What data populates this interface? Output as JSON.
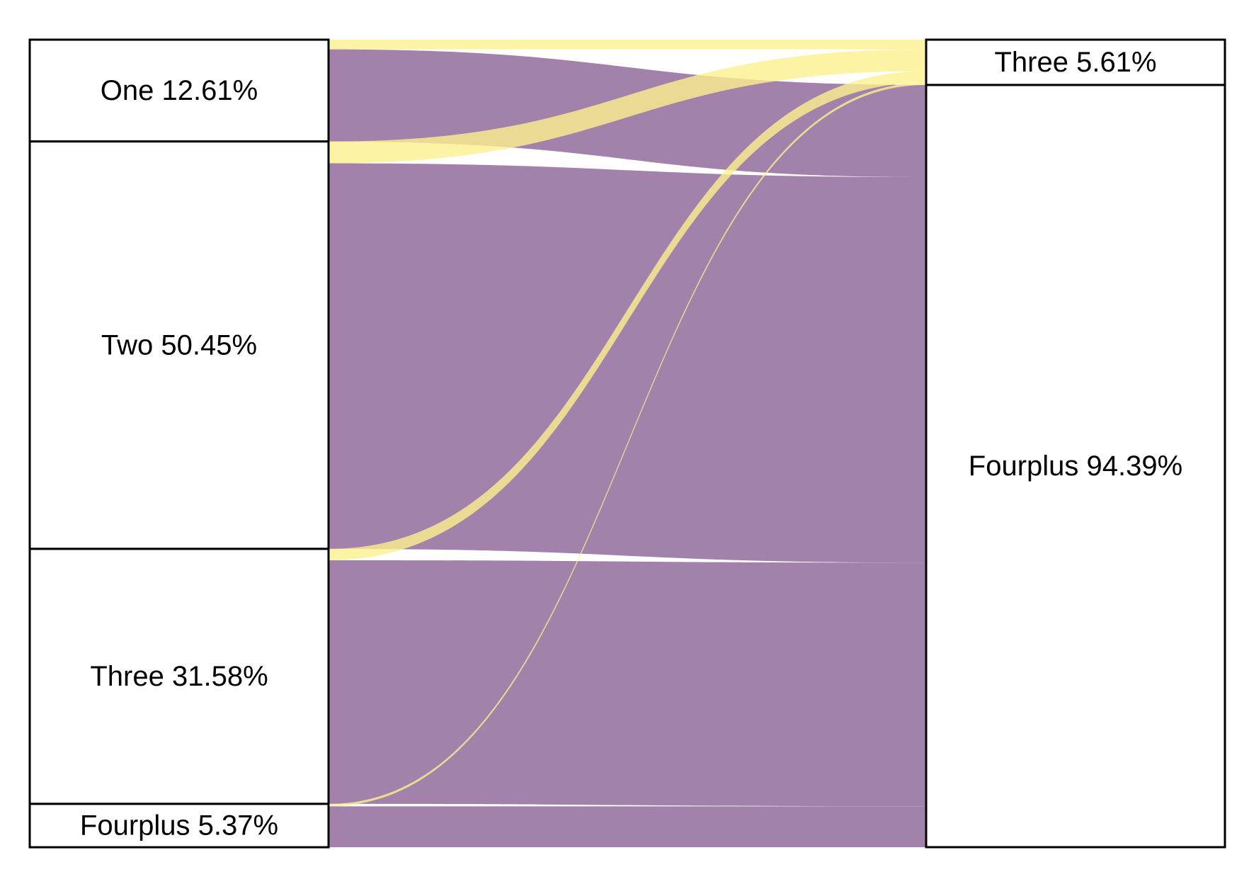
{
  "chart_data": {
    "type": "sankey",
    "colors": {
      "Fourplus": "#a281aa",
      "Three": "#fcf08f",
      "overlap": "#cfb466"
    },
    "left_axis": [
      {
        "name": "One",
        "percent": 12.61,
        "label": "One 12.61%"
      },
      {
        "name": "Two",
        "percent": 50.45,
        "label": "Two 50.45%"
      },
      {
        "name": "Three",
        "percent": 31.58,
        "label": "Three 31.58%"
      },
      {
        "name": "Fourplus",
        "percent": 5.37,
        "label": "Fourplus 5.37%"
      }
    ],
    "right_axis": [
      {
        "name": "Three",
        "percent": 5.61,
        "label": "Three 5.61%"
      },
      {
        "name": "Fourplus",
        "percent": 94.39,
        "label": "Fourplus 94.39%"
      }
    ],
    "flows": [
      {
        "from": "One",
        "to": "Three",
        "percent": 1.2
      },
      {
        "from": "One",
        "to": "Fourplus",
        "percent": 11.41
      },
      {
        "from": "Two",
        "to": "Three",
        "percent": 2.7
      },
      {
        "from": "Two",
        "to": "Fourplus",
        "percent": 47.75
      },
      {
        "from": "Three",
        "to": "Three",
        "percent": 1.41
      },
      {
        "from": "Three",
        "to": "Fourplus",
        "percent": 30.17
      },
      {
        "from": "Fourplus",
        "to": "Three",
        "percent": 0.3
      },
      {
        "from": "Fourplus",
        "to": "Fourplus",
        "percent": 5.07
      }
    ]
  }
}
